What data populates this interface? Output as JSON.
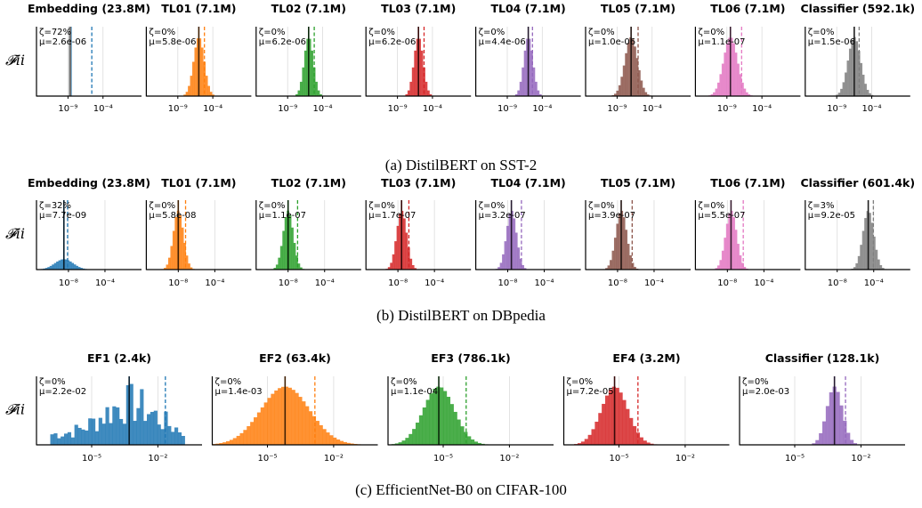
{
  "figure": {
    "ylabel": "𝓕ii",
    "rows": [
      {
        "caption": "(a) DistilBERT on SST-2",
        "panels": [
          {
            "title": "Embedding (23.8M)",
            "zeta": "ζ=72%",
            "mu": "μ=2.6e-06",
            "color": "#1f77b4",
            "ticks": [
              "10⁻⁹",
              "10⁻⁴"
            ],
            "tick_exp": [
              -9,
              -4
            ],
            "xrange": [
              -13.5,
              1.5
            ],
            "median_log": -8.7,
            "mean_log": -5.6,
            "dist": "spike",
            "spread": 0.25,
            "amp": 1.0
          },
          {
            "title": "TL01 (7.1M)",
            "zeta": "ζ=0%",
            "mu": "μ=5.8e-06",
            "color": "#ff7f0e",
            "ticks": [
              "10⁻⁹",
              "10⁻⁴"
            ],
            "tick_exp": [
              -9,
              -4
            ],
            "xrange": [
              -13.5,
              1.5
            ],
            "median_log": -6.0,
            "mean_log": -5.2,
            "dist": "normal",
            "spread": 0.75,
            "amp": 0.85
          },
          {
            "title": "TL02 (7.1M)",
            "zeta": "ζ=0%",
            "mu": "μ=6.2e-06",
            "color": "#2ca02c",
            "ticks": [
              "10⁻⁹",
              "10⁻⁴"
            ],
            "tick_exp": [
              -9,
              -4
            ],
            "xrange": [
              -13.5,
              1.5
            ],
            "median_log": -6.0,
            "mean_log": -5.2,
            "dist": "normal",
            "spread": 0.65,
            "amp": 0.85
          },
          {
            "title": "TL03 (7.1M)",
            "zeta": "ζ=0%",
            "mu": "μ=6.2e-06",
            "color": "#d62728",
            "ticks": [
              "10⁻⁹",
              "10⁻⁴"
            ],
            "tick_exp": [
              -9,
              -4
            ],
            "xrange": [
              -13.5,
              1.5
            ],
            "median_log": -6.0,
            "mean_log": -5.2,
            "dist": "normal",
            "spread": 0.65,
            "amp": 0.85
          },
          {
            "title": "TL04 (7.1M)",
            "zeta": "ζ=0%",
            "mu": "μ=4.4e-06",
            "color": "#9467bd",
            "ticks": [
              "10⁻⁹",
              "10⁻⁴"
            ],
            "tick_exp": [
              -9,
              -4
            ],
            "xrange": [
              -13.5,
              1.5
            ],
            "median_log": -6.0,
            "mean_log": -5.4,
            "dist": "normal",
            "spread": 0.65,
            "amp": 0.85
          },
          {
            "title": "TL05 (7.1M)",
            "zeta": "ζ=0%",
            "mu": "μ=1.0e-06",
            "color": "#8c564b",
            "ticks": [
              "10⁻⁹",
              "10⁻⁴"
            ],
            "tick_exp": [
              -9,
              -4
            ],
            "xrange": [
              -13.5,
              1.5
            ],
            "median_log": -7.0,
            "mean_log": -6.0,
            "dist": "normal",
            "spread": 0.9,
            "amp": 0.85
          },
          {
            "title": "TL06 (7.1M)",
            "zeta": "ζ=0%",
            "mu": "μ=1.1e-07",
            "color": "#e377c2",
            "ticks": [
              "10⁻⁹",
              "10⁻⁴"
            ],
            "tick_exp": [
              -9,
              -4
            ],
            "xrange": [
              -13.5,
              1.5
            ],
            "median_log": -8.5,
            "mean_log": -6.9,
            "dist": "normal",
            "spread": 1.0,
            "amp": 0.85
          },
          {
            "title": "Classifier (592.1k)",
            "zeta": "ζ=0%",
            "mu": "μ=1.5e-06",
            "color": "#7f7f7f",
            "ticks": [
              "10⁻⁹",
              "10⁻⁴"
            ],
            "tick_exp": [
              -9,
              -4
            ],
            "xrange": [
              -13.5,
              1.5
            ],
            "median_log": -6.5,
            "mean_log": -5.8,
            "dist": "normal",
            "spread": 0.9,
            "amp": 0.85
          }
        ]
      },
      {
        "caption": "(b) DistilBERT on DBpedia",
        "panels": [
          {
            "title": "Embedding (23.8M)",
            "zeta": "ζ=32%",
            "mu": "μ=7.7e-09",
            "color": "#1f77b4",
            "ticks": [
              "10⁻⁸",
              "10⁻⁴"
            ],
            "tick_exp": [
              -8,
              -4
            ],
            "xrange": [
              -11.5,
              0
            ],
            "median_log": -8.5,
            "mean_log": -8.1,
            "dist": "normal",
            "spread": 1.0,
            "amp": 0.15
          },
          {
            "title": "TL01 (7.1M)",
            "zeta": "ζ=0%",
            "mu": "μ=5.8e-08",
            "color": "#ff7f0e",
            "ticks": [
              "10⁻⁸",
              "10⁻⁴"
            ],
            "tick_exp": [
              -8,
              -4
            ],
            "xrange": [
              -11.5,
              0
            ],
            "median_log": -8.0,
            "mean_log": -7.2,
            "dist": "normal",
            "spread": 0.55,
            "amp": 0.85
          },
          {
            "title": "TL02 (7.1M)",
            "zeta": "ζ=0%",
            "mu": "μ=1.1e-07",
            "color": "#2ca02c",
            "ticks": [
              "10⁻⁸",
              "10⁻⁴"
            ],
            "tick_exp": [
              -8,
              -4
            ],
            "xrange": [
              -11.5,
              0
            ],
            "median_log": -8.0,
            "mean_log": -6.96,
            "dist": "normal",
            "spread": 0.55,
            "amp": 0.85
          },
          {
            "title": "TL03 (7.1M)",
            "zeta": "ζ=0%",
            "mu": "μ=1.7e-07",
            "color": "#d62728",
            "ticks": [
              "10⁻⁸",
              "10⁻⁴"
            ],
            "tick_exp": [
              -8,
              -4
            ],
            "xrange": [
              -11.5,
              0
            ],
            "median_log": -7.6,
            "mean_log": -6.8,
            "dist": "normal",
            "spread": 0.55,
            "amp": 0.85
          },
          {
            "title": "TL04 (7.1M)",
            "zeta": "ζ=0%",
            "mu": "μ=3.2e-07",
            "color": "#9467bd",
            "ticks": [
              "10⁻⁸",
              "10⁻⁴"
            ],
            "tick_exp": [
              -8,
              -4
            ],
            "xrange": [
              -11.5,
              0
            ],
            "median_log": -7.6,
            "mean_log": -6.5,
            "dist": "normal",
            "spread": 0.55,
            "amp": 0.85
          },
          {
            "title": "TL05 (7.1M)",
            "zeta": "ζ=0%",
            "mu": "μ=3.9e-07",
            "color": "#8c564b",
            "ticks": [
              "10⁻⁸",
              "10⁻⁴"
            ],
            "tick_exp": [
              -8,
              -4
            ],
            "xrange": [
              -11.5,
              0
            ],
            "median_log": -7.6,
            "mean_log": -6.4,
            "dist": "normal",
            "spread": 0.6,
            "amp": 0.85
          },
          {
            "title": "TL06 (7.1M)",
            "zeta": "ζ=0%",
            "mu": "μ=5.5e-07",
            "color": "#e377c2",
            "ticks": [
              "10⁻⁸",
              "10⁻⁴"
            ],
            "tick_exp": [
              -8,
              -4
            ],
            "xrange": [
              -11.5,
              0
            ],
            "median_log": -7.6,
            "mean_log": -6.26,
            "dist": "normal",
            "spread": 0.6,
            "amp": 0.85
          },
          {
            "title": "Classifier (601.4k)",
            "zeta": "ζ=3%",
            "mu": "μ=9.2e-05",
            "color": "#7f7f7f",
            "ticks": [
              "10⁻⁸",
              "10⁻⁴"
            ],
            "tick_exp": [
              -8,
              -4
            ],
            "xrange": [
              -11.5,
              0
            ],
            "median_log": -4.6,
            "mean_log": -4.04,
            "dist": "normal",
            "spread": 0.6,
            "amp": 0.85
          }
        ]
      },
      {
        "caption": "(c) EfficientNet-B0 on CIFAR-100",
        "panels": [
          {
            "title": "EF1 (2.4k)",
            "zeta": "ζ=0%",
            "mu": "μ=2.2e-02",
            "color": "#1f77b4",
            "ticks": [
              "10⁻⁵",
              "10⁻²"
            ],
            "tick_exp": [
              -5,
              -2
            ],
            "xrange": [
              -7.5,
              0
            ],
            "median_log": -3.3,
            "mean_log": -1.66,
            "dist": "noisy",
            "spread": 1.2,
            "amp": 0.7
          },
          {
            "title": "EF2 (63.4k)",
            "zeta": "ζ=0%",
            "mu": "μ=1.4e-03",
            "color": "#ff7f0e",
            "ticks": [
              "10⁻⁵",
              "10⁻²"
            ],
            "tick_exp": [
              -5,
              -2
            ],
            "xrange": [
              -7.5,
              0
            ],
            "median_log": -4.2,
            "mean_log": -2.85,
            "dist": "normal",
            "spread": 1.1,
            "amp": 0.85
          },
          {
            "title": "EF3 (786.1k)",
            "zeta": "ζ=0%",
            "mu": "μ=1.1e-04",
            "color": "#2ca02c",
            "ticks": [
              "10⁻⁵",
              "10⁻²"
            ],
            "tick_exp": [
              -5,
              -2
            ],
            "xrange": [
              -7.5,
              0
            ],
            "median_log": -5.2,
            "mean_log": -3.96,
            "dist": "normal",
            "spread": 0.7,
            "amp": 0.85
          },
          {
            "title": "EF4 (3.2M)",
            "zeta": "ζ=0%",
            "mu": "μ=7.2e-05",
            "color": "#d62728",
            "ticks": [
              "10⁻⁵",
              "10⁻²"
            ],
            "tick_exp": [
              -5,
              -2
            ],
            "xrange": [
              -7.5,
              0
            ],
            "median_log": -5.2,
            "mean_log": -4.14,
            "dist": "normal",
            "spread": 0.6,
            "amp": 0.85
          },
          {
            "title": "Classifier (128.1k)",
            "zeta": "ζ=0%",
            "mu": "μ=2.0e-03",
            "color": "#9467bd",
            "ticks": [
              "10⁻⁵",
              "10⁻²"
            ],
            "tick_exp": [
              -5,
              -2
            ],
            "xrange": [
              -7.5,
              0
            ],
            "median_log": -3.2,
            "mean_log": -2.7,
            "dist": "normal",
            "spread": 0.35,
            "amp": 0.85
          }
        ]
      }
    ]
  },
  "chart_data": {
    "type": "histogram-grid",
    "xscale": "log",
    "ylabel": "𝓕ii",
    "grid": true,
    "legend": "none",
    "rows": [
      "(a) DistilBERT on SST-2",
      "(b) DistilBERT on DBpedia",
      "(c) EfficientNet-B0 on CIFAR-100"
    ]
  }
}
